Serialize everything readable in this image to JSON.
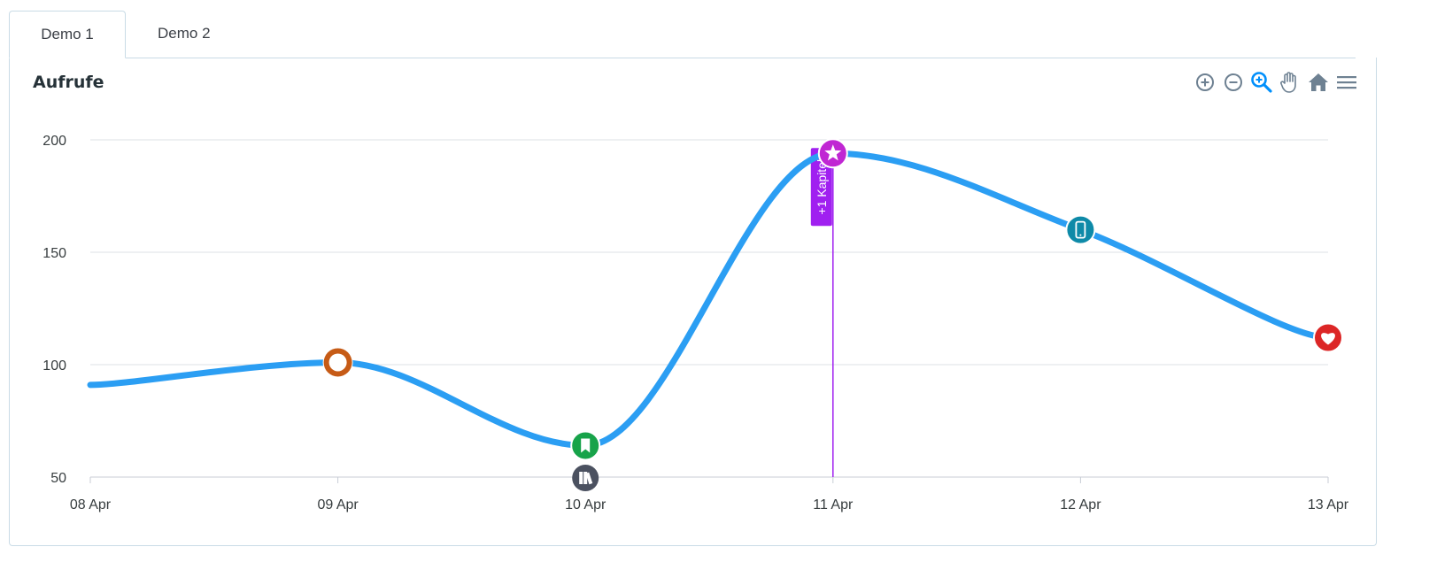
{
  "tabs": [
    {
      "label": "Demo 1",
      "active": true
    },
    {
      "label": "Demo 2",
      "active": false
    }
  ],
  "toolbar": {
    "icons": [
      "zoom-in-icon",
      "zoom-out-icon",
      "selection-zoom-icon",
      "pan-hand-icon",
      "home-reset-icon",
      "menu-icon"
    ],
    "active_icon": "selection-zoom-icon",
    "active_color": "#008ffb",
    "icon_color": "#6e8192"
  },
  "chart_data": {
    "type": "line",
    "title": "Aufrufe",
    "categories": [
      "08 Apr",
      "09 Apr",
      "10 Apr",
      "11 Apr",
      "12 Apr",
      "13 Apr"
    ],
    "series": [
      {
        "values": [
          91,
          101,
          64,
          194,
          160,
          112
        ],
        "color": "#2b9ef3"
      }
    ],
    "ylim": [
      50,
      200
    ],
    "yticks": [
      50,
      100,
      150,
      200
    ],
    "grid": true,
    "markers": [
      {
        "x": "09 Apr",
        "y": 101,
        "icon": "chat-bubble-icon",
        "color": "#c65b16"
      },
      {
        "x": "10 Apr",
        "y": 64,
        "icon": "bookmark-icon",
        "color": "#17a34a"
      },
      {
        "x": "11 Apr",
        "y": 194,
        "icon": "star-icon",
        "color": "#c026d3"
      },
      {
        "x": "12 Apr",
        "y": 160,
        "icon": "smartphone-icon",
        "color": "#0e8aa8"
      },
      {
        "x": "13 Apr",
        "y": 112,
        "icon": "heart-icon",
        "color": "#dc2626"
      }
    ],
    "x_annotation_markers": [
      {
        "x": "10 Apr",
        "icon": "books-icon",
        "color": "#4b5160"
      }
    ],
    "annotations": [
      {
        "x": "11 Apr",
        "label": "+1 Kapitel",
        "color": "#a020f0"
      }
    ]
  }
}
